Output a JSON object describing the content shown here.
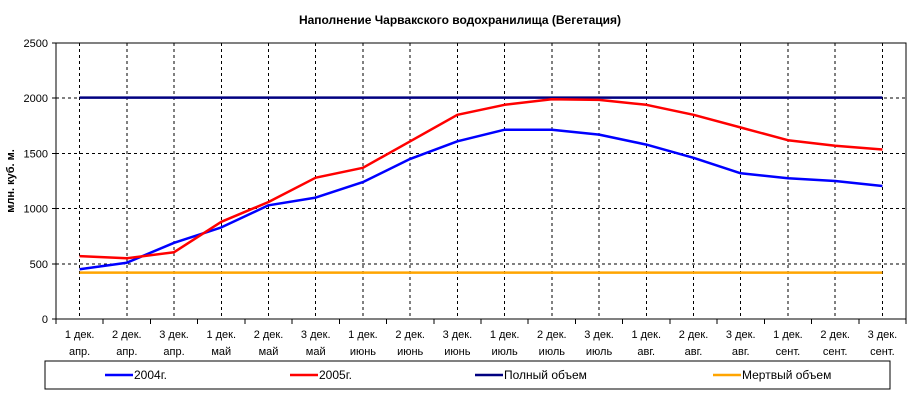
{
  "chart_data": {
    "type": "line",
    "title": "Наполнение Чарвакского водохранилища  (Вегетация)",
    "ylabel": "млн. куб. м.",
    "xlabel": "",
    "ylim": [
      0,
      2500
    ],
    "yticks": [
      "0",
      "500",
      "1000",
      "1500",
      "2000",
      "2500"
    ],
    "grid": true,
    "legend_position": "bottom",
    "categories": [
      {
        "line1": "1 дек.",
        "line2": "апр."
      },
      {
        "line1": "2 дек.",
        "line2": "апр."
      },
      {
        "line1": "3 дек.",
        "line2": "апр."
      },
      {
        "line1": "1 дек.",
        "line2": "май"
      },
      {
        "line1": "2 дек.",
        "line2": "май"
      },
      {
        "line1": "3 дек.",
        "line2": "май"
      },
      {
        "line1": "1 дек.",
        "line2": "июнь"
      },
      {
        "line1": "2 дек.",
        "line2": "июнь"
      },
      {
        "line1": "3 дек.",
        "line2": "июнь"
      },
      {
        "line1": "1 дек.",
        "line2": "июль"
      },
      {
        "line1": "2 дек.",
        "line2": "июль"
      },
      {
        "line1": "3 дек.",
        "line2": "июль"
      },
      {
        "line1": "1 дек.",
        "line2": "авг."
      },
      {
        "line1": "2 дек.",
        "line2": "авг."
      },
      {
        "line1": "3 дек.",
        "line2": "авг."
      },
      {
        "line1": "1 дек.",
        "line2": "сент."
      },
      {
        "line1": "2 дек.",
        "line2": "сент."
      },
      {
        "line1": "3 дек.",
        "line2": "сент."
      }
    ],
    "series": [
      {
        "name": "2004г.",
        "color": "#0000ff",
        "values": [
          450,
          510,
          690,
          830,
          1030,
          1100,
          1240,
          1450,
          1610,
          1715,
          1715,
          1670,
          1580,
          1460,
          1320,
          1275,
          1250,
          1205
        ]
      },
      {
        "name": "2005г.",
        "color": "#ff0000",
        "values": [
          570,
          550,
          605,
          880,
          1060,
          1280,
          1370,
          1610,
          1850,
          1940,
          1990,
          1985,
          1940,
          1850,
          1735,
          1620,
          1570,
          1535
        ]
      },
      {
        "name": "Полный объем",
        "color": "#000080",
        "values": [
          2005,
          2005,
          2005,
          2005,
          2005,
          2005,
          2005,
          2005,
          2005,
          2005,
          2005,
          2005,
          2005,
          2005,
          2005,
          2005,
          2005,
          2005
        ]
      },
      {
        "name": "Мертвый объем",
        "color": "#ffa500",
        "values": [
          420,
          420,
          420,
          420,
          420,
          420,
          420,
          420,
          420,
          420,
          420,
          420,
          420,
          420,
          420,
          420,
          420,
          420
        ]
      }
    ]
  }
}
